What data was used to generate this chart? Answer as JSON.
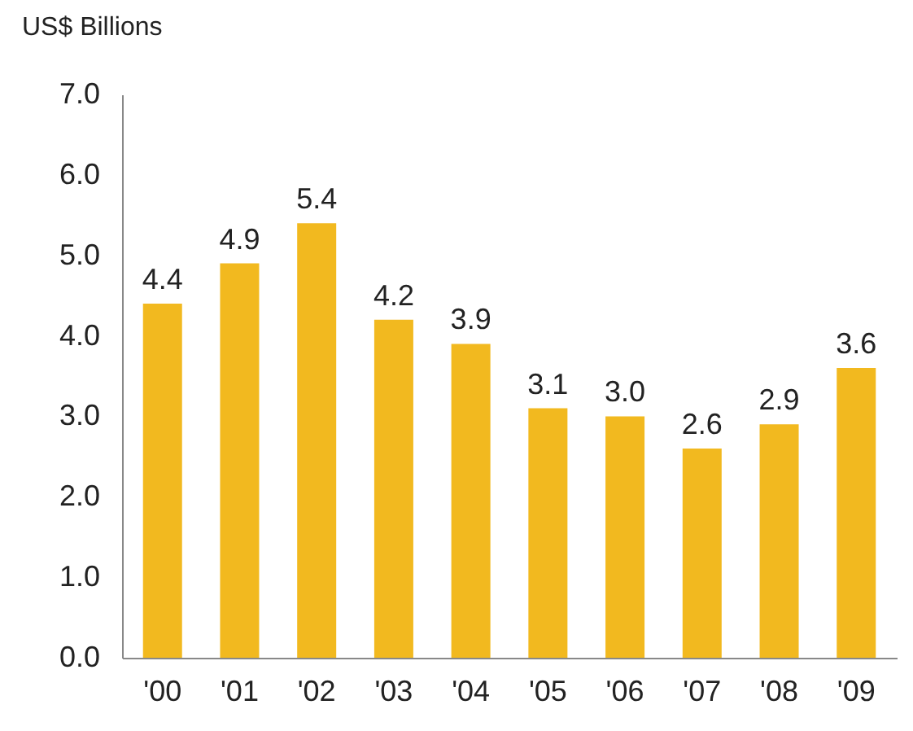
{
  "chart_data": {
    "type": "bar",
    "ylabel": "US$ Billions",
    "categories": [
      "'00",
      "'01",
      "'02",
      "'03",
      "'04",
      "'05",
      "'06",
      "'07",
      "'08",
      "'09"
    ],
    "values": [
      4.4,
      4.9,
      5.4,
      4.2,
      3.9,
      3.1,
      3.0,
      2.6,
      2.9,
      3.6
    ],
    "color": "#f2b91f",
    "ylim": [
      0,
      7
    ],
    "yticks": [
      {
        "value": 0,
        "label": "0.0"
      },
      {
        "value": 1,
        "label": "1.0"
      },
      {
        "value": 2,
        "label": "2.0"
      },
      {
        "value": 3,
        "label": "3.0"
      },
      {
        "value": 4,
        "label": "4.0"
      },
      {
        "value": 5,
        "label": "5.0"
      },
      {
        "value": 6,
        "label": "6.0"
      },
      {
        "value": 7,
        "label": "7.0"
      }
    ],
    "value_labels": [
      "4.4",
      "4.9",
      "5.4",
      "4.2",
      "3.9",
      "3.1",
      "3.0",
      "2.6",
      "2.9",
      "3.6"
    ],
    "grid": false
  }
}
